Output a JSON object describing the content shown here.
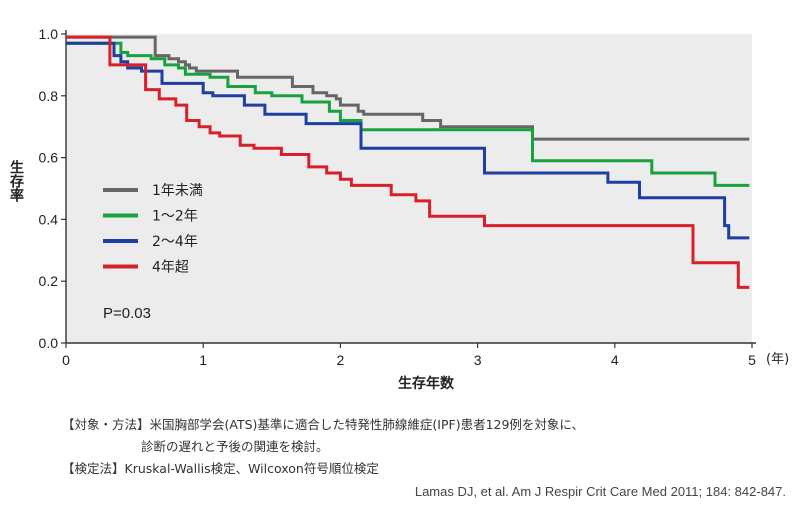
{
  "chart_data": {
    "type": "line",
    "title": "",
    "xlabel": "生存年数",
    "xunit": "(年)",
    "ylabel": "生存率",
    "xlim": [
      0,
      5
    ],
    "ylim": [
      0,
      1.0
    ],
    "xticks": [
      0,
      1,
      2,
      3,
      4,
      5
    ],
    "xtick_labels": [
      "0",
      "1",
      "2",
      "3",
      "4",
      "5"
    ],
    "yticks": [
      0,
      0.2,
      0.4,
      0.6,
      0.8,
      1.0
    ],
    "ytick_labels": [
      "0.0",
      "0.2",
      "0.4",
      "0.6",
      "0.8",
      "1.0"
    ],
    "legend_position": "left-middle",
    "annotation": "P=0.03",
    "series": [
      {
        "name": "1年未満",
        "color": "#666666",
        "points": [
          [
            0,
            0.99
          ],
          [
            0.65,
            0.99
          ],
          [
            0.65,
            0.93
          ],
          [
            0.75,
            0.93
          ],
          [
            0.75,
            0.92
          ],
          [
            0.82,
            0.92
          ],
          [
            0.82,
            0.91
          ],
          [
            0.87,
            0.91
          ],
          [
            0.87,
            0.9
          ],
          [
            0.9,
            0.9
          ],
          [
            0.9,
            0.89
          ],
          [
            0.95,
            0.89
          ],
          [
            0.95,
            0.88
          ],
          [
            1.25,
            0.88
          ],
          [
            1.25,
            0.86
          ],
          [
            1.65,
            0.86
          ],
          [
            1.65,
            0.83
          ],
          [
            1.8,
            0.83
          ],
          [
            1.8,
            0.81
          ],
          [
            1.9,
            0.81
          ],
          [
            1.9,
            0.8
          ],
          [
            1.97,
            0.8
          ],
          [
            1.97,
            0.79
          ],
          [
            2.0,
            0.79
          ],
          [
            2.0,
            0.77
          ],
          [
            2.13,
            0.77
          ],
          [
            2.13,
            0.75
          ],
          [
            2.17,
            0.75
          ],
          [
            2.17,
            0.74
          ],
          [
            2.6,
            0.74
          ],
          [
            2.6,
            0.72
          ],
          [
            2.73,
            0.72
          ],
          [
            2.73,
            0.7
          ],
          [
            3.4,
            0.7
          ],
          [
            3.4,
            0.66
          ],
          [
            4.98,
            0.66
          ]
        ]
      },
      {
        "name": "1〜2年",
        "color": "#1aa13f",
        "points": [
          [
            0,
            0.97
          ],
          [
            0.4,
            0.97
          ],
          [
            0.4,
            0.94
          ],
          [
            0.45,
            0.94
          ],
          [
            0.45,
            0.93
          ],
          [
            0.62,
            0.93
          ],
          [
            0.62,
            0.92
          ],
          [
            0.72,
            0.92
          ],
          [
            0.72,
            0.9
          ],
          [
            0.82,
            0.9
          ],
          [
            0.82,
            0.89
          ],
          [
            0.87,
            0.89
          ],
          [
            0.87,
            0.87
          ],
          [
            1.05,
            0.87
          ],
          [
            1.05,
            0.86
          ],
          [
            1.18,
            0.86
          ],
          [
            1.18,
            0.83
          ],
          [
            1.38,
            0.83
          ],
          [
            1.38,
            0.81
          ],
          [
            1.5,
            0.81
          ],
          [
            1.5,
            0.8
          ],
          [
            1.72,
            0.8
          ],
          [
            1.72,
            0.78
          ],
          [
            1.92,
            0.78
          ],
          [
            1.92,
            0.75
          ],
          [
            2.0,
            0.75
          ],
          [
            2.0,
            0.72
          ],
          [
            2.15,
            0.72
          ],
          [
            2.15,
            0.69
          ],
          [
            3.4,
            0.69
          ],
          [
            3.4,
            0.59
          ],
          [
            4.27,
            0.59
          ],
          [
            4.27,
            0.55
          ],
          [
            4.73,
            0.55
          ],
          [
            4.73,
            0.51
          ],
          [
            4.98,
            0.51
          ]
        ]
      },
      {
        "name": "2〜4年",
        "color": "#1f3fa0",
        "points": [
          [
            0,
            0.97
          ],
          [
            0.35,
            0.97
          ],
          [
            0.35,
            0.93
          ],
          [
            0.4,
            0.93
          ],
          [
            0.4,
            0.91
          ],
          [
            0.45,
            0.91
          ],
          [
            0.45,
            0.89
          ],
          [
            0.55,
            0.89
          ],
          [
            0.55,
            0.88
          ],
          [
            0.7,
            0.88
          ],
          [
            0.7,
            0.84
          ],
          [
            1.0,
            0.84
          ],
          [
            1.0,
            0.81
          ],
          [
            1.07,
            0.81
          ],
          [
            1.07,
            0.8
          ],
          [
            1.3,
            0.8
          ],
          [
            1.3,
            0.77
          ],
          [
            1.45,
            0.77
          ],
          [
            1.45,
            0.74
          ],
          [
            1.75,
            0.74
          ],
          [
            1.75,
            0.71
          ],
          [
            2.15,
            0.71
          ],
          [
            2.15,
            0.63
          ],
          [
            3.05,
            0.63
          ],
          [
            3.05,
            0.55
          ],
          [
            3.95,
            0.55
          ],
          [
            3.95,
            0.52
          ],
          [
            4.18,
            0.52
          ],
          [
            4.18,
            0.47
          ],
          [
            4.8,
            0.47
          ],
          [
            4.8,
            0.38
          ],
          [
            4.83,
            0.38
          ],
          [
            4.83,
            0.34
          ],
          [
            4.98,
            0.34
          ]
        ]
      },
      {
        "name": "4年超",
        "color": "#d8202a",
        "points": [
          [
            0,
            0.99
          ],
          [
            0.32,
            0.99
          ],
          [
            0.32,
            0.9
          ],
          [
            0.58,
            0.9
          ],
          [
            0.58,
            0.82
          ],
          [
            0.68,
            0.82
          ],
          [
            0.68,
            0.79
          ],
          [
            0.8,
            0.79
          ],
          [
            0.8,
            0.77
          ],
          [
            0.88,
            0.77
          ],
          [
            0.88,
            0.72
          ],
          [
            0.97,
            0.72
          ],
          [
            0.97,
            0.7
          ],
          [
            1.05,
            0.7
          ],
          [
            1.05,
            0.68
          ],
          [
            1.12,
            0.68
          ],
          [
            1.12,
            0.67
          ],
          [
            1.27,
            0.67
          ],
          [
            1.27,
            0.64
          ],
          [
            1.37,
            0.64
          ],
          [
            1.37,
            0.63
          ],
          [
            1.57,
            0.63
          ],
          [
            1.57,
            0.61
          ],
          [
            1.77,
            0.61
          ],
          [
            1.77,
            0.57
          ],
          [
            1.9,
            0.57
          ],
          [
            1.9,
            0.55
          ],
          [
            2.0,
            0.55
          ],
          [
            2.0,
            0.53
          ],
          [
            2.08,
            0.53
          ],
          [
            2.08,
            0.51
          ],
          [
            2.37,
            0.51
          ],
          [
            2.37,
            0.48
          ],
          [
            2.55,
            0.48
          ],
          [
            2.55,
            0.46
          ],
          [
            2.65,
            0.46
          ],
          [
            2.65,
            0.41
          ],
          [
            3.05,
            0.41
          ],
          [
            3.05,
            0.38
          ],
          [
            4.57,
            0.38
          ],
          [
            4.57,
            0.26
          ],
          [
            4.9,
            0.26
          ],
          [
            4.9,
            0.18
          ],
          [
            4.98,
            0.18
          ]
        ]
      }
    ]
  },
  "notes": {
    "line1": "【対象・方法】米国胸部学会(ATS)基準に適合した特発性肺線維症(IPF)患者129例を対象に、",
    "line2": "診断の遅れと予後の関連を検討。",
    "line3": "【検定法】Kruskal-Wallis検定、Wilcoxon符号順位検定"
  },
  "citation": "Lamas DJ, et al. Am J Respir Crit Care Med 2011; 184: 842-847."
}
